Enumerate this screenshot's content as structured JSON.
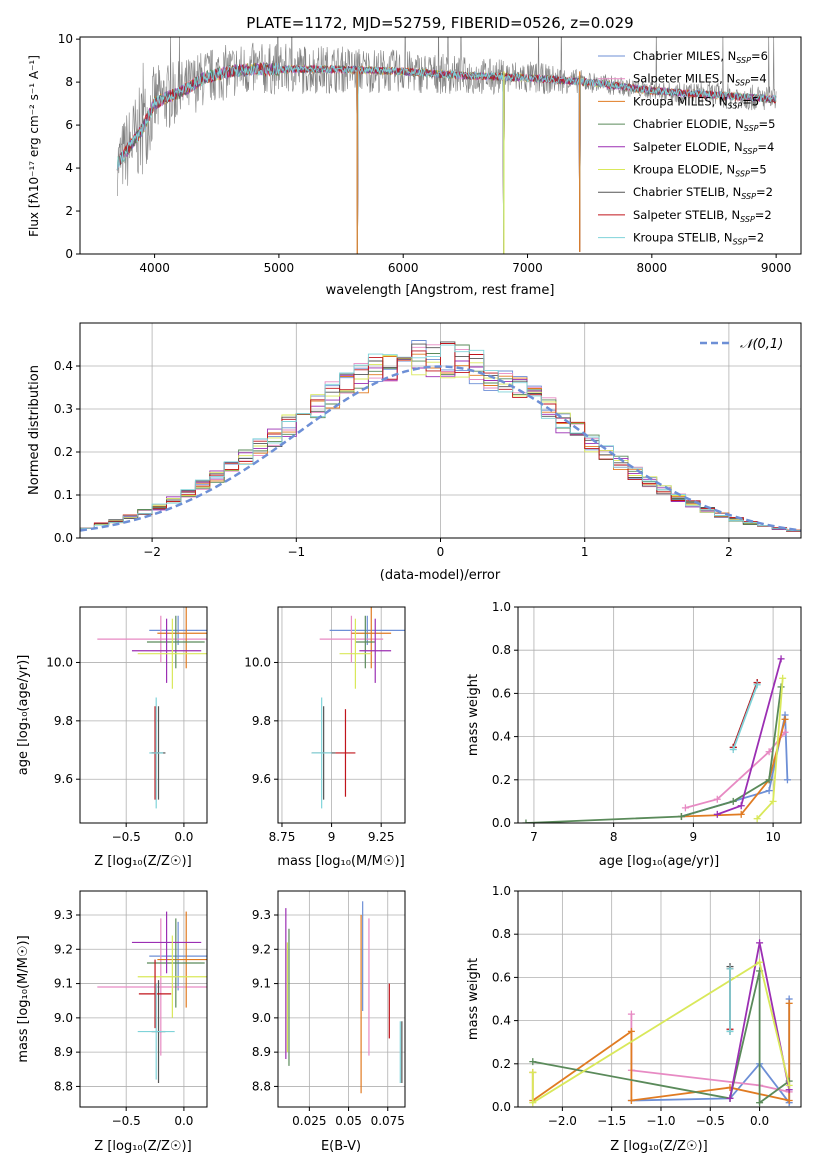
{
  "figure": {
    "title": "PLATE=1172, MJD=52759, FIBERID=0526, z=0.029"
  },
  "colors": [
    "#6d8fd6",
    "#e78ac3",
    "#e07b22",
    "#5a8a5a",
    "#9b2fb3",
    "#d9e85a",
    "#555555",
    "#c0141b",
    "#7fd3d9"
  ],
  "chart_data": [
    {
      "id": "spectrum",
      "type": "line",
      "xlabel": "wavelength [Angstrom, rest frame]",
      "ylabel": "Flux [fλ10⁻¹⁷ erg cm⁻² s⁻¹ A⁻¹]",
      "xlim": [
        3400,
        9200
      ],
      "ylim": [
        0,
        10.1
      ],
      "xticks": [
        4000,
        5000,
        6000,
        7000,
        8000,
        9000
      ],
      "yticks": [
        0,
        2,
        4,
        6,
        8,
        10
      ],
      "grid": false,
      "legend_position": "top-right",
      "legend": [
        "Chabrier MILES, N_SSP=6",
        "Salpeter MILES, N_SSP=4",
        "Kroupa MILES, N_SSP=5",
        "Chabrier ELODIE, N_SSP=5",
        "Salpeter ELODIE, N_SSP=4",
        "Kroupa ELODIE, N_SSP=5",
        "Chabrier STELIB, N_SSP=2",
        "Salpeter STELIB, N_SSP=2",
        "Kroupa STELIB, N_SSP=2"
      ],
      "model_continuum": {
        "x": [
          3700,
          3800,
          3900,
          4000,
          4100,
          4200,
          4400,
          4600,
          4800,
          5000,
          5200,
          5500,
          6000,
          6500,
          7000,
          7500,
          8000,
          8500,
          9000
        ],
        "y": [
          4.2,
          5.0,
          5.8,
          7.0,
          7.3,
          7.5,
          8.2,
          8.5,
          8.6,
          8.6,
          8.6,
          8.6,
          8.5,
          8.3,
          8.2,
          8.0,
          7.6,
          7.4,
          7.2
        ]
      },
      "model_dips": [
        {
          "x": 5630,
          "y": 0
        },
        {
          "x": 6810,
          "y": 0
        },
        {
          "x": 7420,
          "y": 0.1
        }
      ],
      "observed_envelope": {
        "x": [
          3700,
          3800,
          3900,
          4000,
          4100,
          4300,
          4500,
          5000,
          5500,
          6000,
          6500,
          7000,
          7500,
          8000,
          8500,
          9000
        ],
        "noise": [
          1.5,
          2.0,
          2.2,
          1.8,
          1.6,
          1.4,
          1.3,
          1.2,
          1.1,
          1.0,
          0.9,
          0.8,
          0.5,
          0.4,
          0.6,
          0.6
        ]
      }
    },
    {
      "id": "residual-histogram",
      "type": "histogram",
      "xlabel": "(data-model)/error",
      "ylabel": "Normed distribution",
      "xlim": [
        -2.5,
        2.5
      ],
      "ylim": [
        0,
        0.5
      ],
      "xticks": [
        -2,
        -1,
        0,
        1,
        2
      ],
      "yticks": [
        0.0,
        0.1,
        0.2,
        0.3,
        0.4
      ],
      "grid": true,
      "legend_position": "top-right",
      "legend": [
        "𝒩(0,1)"
      ],
      "gaussian": {
        "mu": 0,
        "sigma": 1
      },
      "bin_width": 0.1
    },
    {
      "id": "age-vs-Z",
      "type": "scatter",
      "xlabel": "Z [log₁₀(Z/Z☉)]",
      "ylabel": "age  [log₁₀(age/yr)]",
      "xlim": [
        -0.9,
        0.2
      ],
      "ylim": [
        9.45,
        10.19
      ],
      "xticks": [
        -0.5,
        0.0
      ],
      "yticks": [
        9.6,
        9.8,
        10.0
      ],
      "grid": true,
      "points": [
        {
          "x": -0.05,
          "y": 10.11,
          "xerr": 0.25,
          "yerr": 0.05,
          "c": 0
        },
        {
          "x": -0.2,
          "y": 10.08,
          "xerr": 0.55,
          "yerr": 0.08,
          "c": 1
        },
        {
          "x": 0.02,
          "y": 10.1,
          "xerr": 0.25,
          "yerr": 0.12,
          "c": 2
        },
        {
          "x": -0.07,
          "y": 10.07,
          "xerr": 0.25,
          "yerr": 0.09,
          "c": 3
        },
        {
          "x": -0.15,
          "y": 10.04,
          "xerr": 0.3,
          "yerr": 0.11,
          "c": 4
        },
        {
          "x": -0.1,
          "y": 10.03,
          "xerr": 0.3,
          "yerr": 0.12,
          "c": 5
        },
        {
          "x": -0.22,
          "y": 9.69,
          "xerr": 0.06,
          "yerr": 0.16,
          "c": 6
        },
        {
          "x": -0.25,
          "y": 9.69,
          "xerr": 0.03,
          "yerr": 0.16,
          "c": 7
        },
        {
          "x": -0.24,
          "y": 9.69,
          "xerr": 0.06,
          "yerr": 0.19,
          "c": 8
        }
      ]
    },
    {
      "id": "age-vs-mass",
      "type": "scatter",
      "xlabel": "mass [log₁₀(M/M☉)]",
      "ylabel": "",
      "xlim": [
        8.73,
        9.37
      ],
      "ylim": [
        9.45,
        10.19
      ],
      "xticks": [
        8.75,
        9.0,
        9.25
      ],
      "yticks": [
        9.6,
        9.8,
        10.0
      ],
      "grid": true,
      "points": [
        {
          "x": 9.18,
          "y": 10.11,
          "xerr": 0.19,
          "yerr": 0.05,
          "c": 0
        },
        {
          "x": 9.1,
          "y": 10.08,
          "xerr": 0.16,
          "yerr": 0.08,
          "c": 1
        },
        {
          "x": 9.2,
          "y": 10.1,
          "xerr": 0.1,
          "yerr": 0.12,
          "c": 2
        },
        {
          "x": 9.17,
          "y": 10.07,
          "xerr": 0.05,
          "yerr": 0.09,
          "c": 3
        },
        {
          "x": 9.22,
          "y": 10.04,
          "xerr": 0.08,
          "yerr": 0.11,
          "c": 4
        },
        {
          "x": 9.12,
          "y": 10.03,
          "xerr": 0.08,
          "yerr": 0.12,
          "c": 5
        },
        {
          "x": 8.96,
          "y": 9.69,
          "xerr": 0.06,
          "yerr": 0.16,
          "c": 6
        },
        {
          "x": 9.07,
          "y": 9.69,
          "xerr": 0.05,
          "yerr": 0.15,
          "c": 7
        },
        {
          "x": 8.95,
          "y": 9.69,
          "xerr": 0.05,
          "yerr": 0.19,
          "c": 8
        }
      ]
    },
    {
      "id": "mass-weight-vs-age",
      "type": "line",
      "xlabel": "age  [log₁₀(age/yr)]",
      "ylabel": "mass weight",
      "xlim": [
        6.8,
        10.35
      ],
      "ylim": [
        0,
        1.0
      ],
      "xticks": [
        7,
        8,
        9,
        10
      ],
      "yticks": [
        0.0,
        0.2,
        0.4,
        0.6,
        0.8,
        1.0
      ],
      "grid": true,
      "series": [
        {
          "c": 0,
          "x": [
            8.85,
            9.95,
            10.15,
            10.18
          ],
          "y": [
            0.03,
            0.15,
            0.5,
            0.2
          ]
        },
        {
          "c": 1,
          "x": [
            8.9,
            9.3,
            9.95,
            10.15
          ],
          "y": [
            0.07,
            0.11,
            0.33,
            0.42
          ]
        },
        {
          "c": 2,
          "x": [
            8.85,
            9.6,
            9.95,
            10.15
          ],
          "y": [
            0.03,
            0.04,
            0.2,
            0.48
          ]
        },
        {
          "c": 3,
          "x": [
            6.9,
            8.85,
            9.5,
            9.95,
            10.1
          ],
          "y": [
            0.0,
            0.03,
            0.1,
            0.2,
            0.63
          ]
        },
        {
          "c": 4,
          "x": [
            9.3,
            9.6,
            10.1
          ],
          "y": [
            0.04,
            0.08,
            0.76
          ]
        },
        {
          "c": 5,
          "x": [
            9.8,
            10.0,
            10.12
          ],
          "y": [
            0.02,
            0.1,
            0.67
          ]
        },
        {
          "c": 6,
          "x": [
            9.5,
            9.8
          ],
          "y": [
            0.35,
            0.65
          ]
        },
        {
          "c": 7,
          "x": [
            9.5,
            9.8
          ],
          "y": [
            0.35,
            0.65
          ]
        },
        {
          "c": 8,
          "x": [
            9.5,
            9.8
          ],
          "y": [
            0.34,
            0.64
          ]
        }
      ]
    },
    {
      "id": "mass-vs-Z",
      "type": "scatter",
      "xlabel": "Z [log₁₀(Z/Z☉)]",
      "ylabel": "mass [log₁₀(M/M☉)]",
      "xlim": [
        -0.9,
        0.2
      ],
      "ylim": [
        8.74,
        9.37
      ],
      "xticks": [
        -0.5,
        0.0
      ],
      "yticks": [
        8.8,
        8.9,
        9.0,
        9.1,
        9.2,
        9.3
      ],
      "grid": true,
      "points": [
        {
          "x": -0.05,
          "y": 9.18,
          "xerr": 0.25,
          "yerr": 0.1,
          "c": 0
        },
        {
          "x": -0.2,
          "y": 9.09,
          "xerr": 0.55,
          "yerr": 0.2,
          "c": 1
        },
        {
          "x": 0.02,
          "y": 9.17,
          "xerr": 0.25,
          "yerr": 0.14,
          "c": 2
        },
        {
          "x": -0.07,
          "y": 9.16,
          "xerr": 0.25,
          "yerr": 0.13,
          "c": 3
        },
        {
          "x": -0.15,
          "y": 9.22,
          "xerr": 0.3,
          "yerr": 0.09,
          "c": 4
        },
        {
          "x": -0.1,
          "y": 9.12,
          "xerr": 0.3,
          "yerr": 0.12,
          "c": 5
        },
        {
          "x": -0.22,
          "y": 8.96,
          "xerr": 0.06,
          "yerr": 0.15,
          "c": 6
        },
        {
          "x": -0.25,
          "y": 9.07,
          "xerr": 0.14,
          "yerr": 0.1,
          "c": 7
        },
        {
          "x": -0.24,
          "y": 8.96,
          "xerr": 0.16,
          "yerr": 0.14,
          "c": 8
        }
      ]
    },
    {
      "id": "mass-vs-ebv",
      "type": "scatter",
      "xlabel": "E(B-V)",
      "ylabel": "",
      "xlim": [
        0.005,
        0.086
      ],
      "ylim": [
        8.74,
        9.37
      ],
      "xticks": [
        0.025,
        0.05,
        0.075
      ],
      "yticks": [
        8.8,
        8.9,
        9.0,
        9.1,
        9.2,
        9.3
      ],
      "grid": true,
      "points": [
        {
          "x": 0.059,
          "y": 9.18,
          "xerr": 0,
          "yerr": 0.16,
          "c": 0
        },
        {
          "x": 0.063,
          "y": 9.09,
          "xerr": 0,
          "yerr": 0.2,
          "c": 1
        },
        {
          "x": 0.058,
          "y": 9.04,
          "xerr": 0,
          "yerr": 0.26,
          "c": 2
        },
        {
          "x": 0.012,
          "y": 9.06,
          "xerr": 0,
          "yerr": 0.2,
          "c": 3
        },
        {
          "x": 0.01,
          "y": 9.1,
          "xerr": 0,
          "yerr": 0.22,
          "c": 4
        },
        {
          "x": 0.011,
          "y": 9.06,
          "xerr": 0,
          "yerr": 0.16,
          "c": 5
        },
        {
          "x": 0.084,
          "y": 8.9,
          "xerr": 0,
          "yerr": 0.09,
          "c": 6
        },
        {
          "x": 0.076,
          "y": 9.02,
          "xerr": 0,
          "yerr": 0.08,
          "c": 7
        },
        {
          "x": 0.083,
          "y": 8.9,
          "xerr": 0,
          "yerr": 0.09,
          "c": 8
        }
      ]
    },
    {
      "id": "mass-weight-vs-Z",
      "type": "line",
      "xlabel": "Z [log₁₀(Z/Z☉)]",
      "ylabel": "mass weight",
      "xlim": [
        -2.45,
        0.42
      ],
      "ylim": [
        0,
        1.0
      ],
      "xticks": [
        -2.0,
        -1.5,
        -1.0,
        -0.5,
        0.0
      ],
      "yticks": [
        0.0,
        0.2,
        0.4,
        0.6,
        0.8,
        1.0
      ],
      "grid": true,
      "series": [
        {
          "c": 0,
          "x": [
            0.3,
            0.3,
            0.0,
            -0.3,
            -1.3
          ],
          "y": [
            0.5,
            0.02,
            0.2,
            0.04,
            0.03
          ]
        },
        {
          "c": 1,
          "x": [
            -1.3,
            -1.3,
            0.0,
            0.3
          ],
          "y": [
            0.43,
            0.17,
            0.1,
            0.07
          ]
        },
        {
          "c": 2,
          "x": [
            0.3,
            0.3,
            -0.3,
            -1.3,
            -1.3,
            -2.3,
            -2.3
          ],
          "y": [
            0.48,
            0.03,
            0.09,
            0.03,
            0.35,
            0.03,
            0.16
          ]
        },
        {
          "c": 3,
          "x": [
            -2.3,
            -0.3,
            0.0,
            0.0,
            0.3
          ],
          "y": [
            0.21,
            0.04,
            0.63,
            0.02,
            0.12
          ]
        },
        {
          "c": 4,
          "x": [
            -0.3,
            0.0,
            0.3
          ],
          "y": [
            0.04,
            0.76,
            0.08
          ]
        },
        {
          "c": 5,
          "x": [
            -2.3,
            -2.3,
            0.0,
            0.3
          ],
          "y": [
            0.16,
            0.02,
            0.67,
            0.1
          ]
        },
        {
          "c": 6,
          "x": [
            -0.3,
            -0.3
          ],
          "y": [
            0.35,
            0.65
          ]
        },
        {
          "c": 7,
          "x": [
            -0.3,
            -0.3
          ],
          "y": [
            0.36,
            0.64
          ]
        },
        {
          "c": 8,
          "x": [
            -0.3,
            -0.3
          ],
          "y": [
            0.35,
            0.64
          ]
        }
      ]
    }
  ]
}
